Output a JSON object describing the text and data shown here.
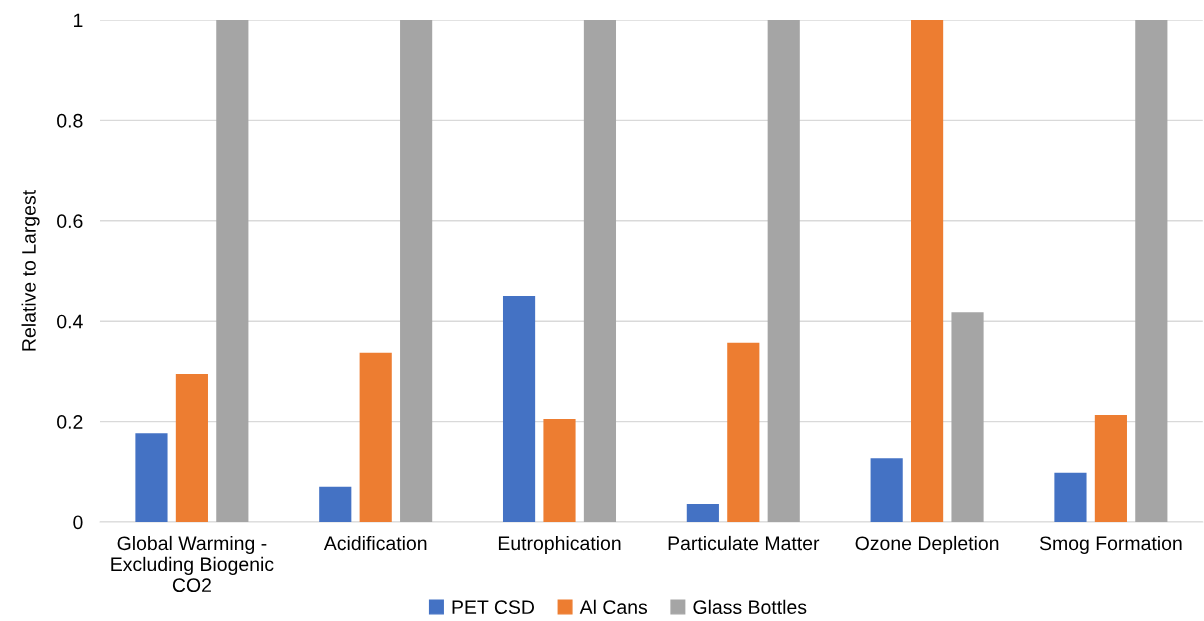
{
  "chart_data": {
    "type": "bar",
    "ylabel": "Relative to Largest",
    "categories": [
      "Global Warming - Excluding Biogenic CO2",
      "Acidification",
      "Eutrophication",
      "Particulate Matter",
      "Ozone Depletion",
      "Smog Formation"
    ],
    "series": [
      {
        "name": "PET CSD",
        "color": "#4472c4",
        "values": [
          0.177,
          0.07,
          0.45,
          0.036,
          0.127,
          0.098
        ]
      },
      {
        "name": "Al Cans",
        "color": "#ed7d31",
        "values": [
          0.295,
          0.337,
          0.205,
          0.357,
          1,
          0.213
        ]
      },
      {
        "name": "Glass Bottles",
        "color": "#a5a5a5",
        "values": [
          1,
          1,
          1,
          1,
          0.418,
          1
        ]
      }
    ],
    "ylim": [
      0,
      1
    ],
    "yticks": [
      0,
      0.2,
      0.4,
      0.6,
      0.8,
      1
    ],
    "grid": "y",
    "legend": "bottom"
  }
}
